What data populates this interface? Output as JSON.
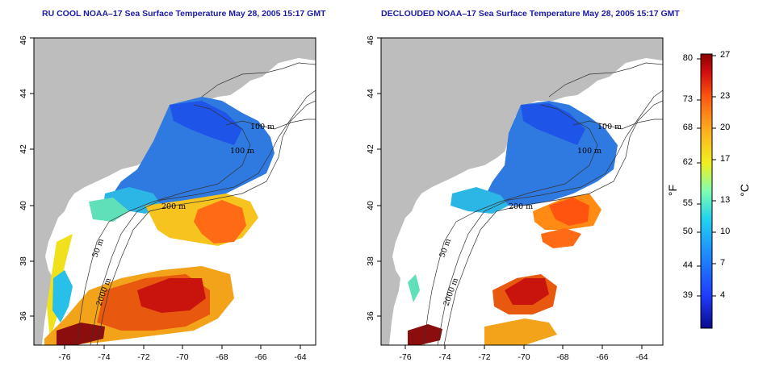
{
  "maps": [
    {
      "title": "RU COOL NOAA–17 Sea Surface Temperature May 28, 2005 15:17 GMT"
    },
    {
      "title": "DECLOUDED NOAA–17 Sea Surface Temperature May 28, 2005 15:17 GMT"
    }
  ],
  "x_ticks": [
    "-76",
    "-74",
    "-72",
    "-70",
    "-68",
    "-66",
    "-64"
  ],
  "y_ticks": [
    "36",
    "38",
    "40",
    "42",
    "44",
    "46"
  ],
  "contour_labels": [
    "100 m",
    "100 m",
    "200 m",
    "200 m",
    "50 m",
    "2000 m"
  ],
  "colorbar": {
    "fahrenheit_ticks": [
      "80",
      "73",
      "68",
      "62",
      "55",
      "50",
      "44",
      "39"
    ],
    "celsius_ticks": [
      "27",
      "23",
      "20",
      "17",
      "13",
      "10",
      "7",
      "4"
    ],
    "unit_f": "°F",
    "unit_c": "°C",
    "colors": [
      "#0a0a8c",
      "#1f3dff",
      "#1e90ff",
      "#22d3ee",
      "#7fffb0",
      "#f0f01e",
      "#ffb020",
      "#ff5a10",
      "#d41010",
      "#8c0000"
    ]
  }
}
